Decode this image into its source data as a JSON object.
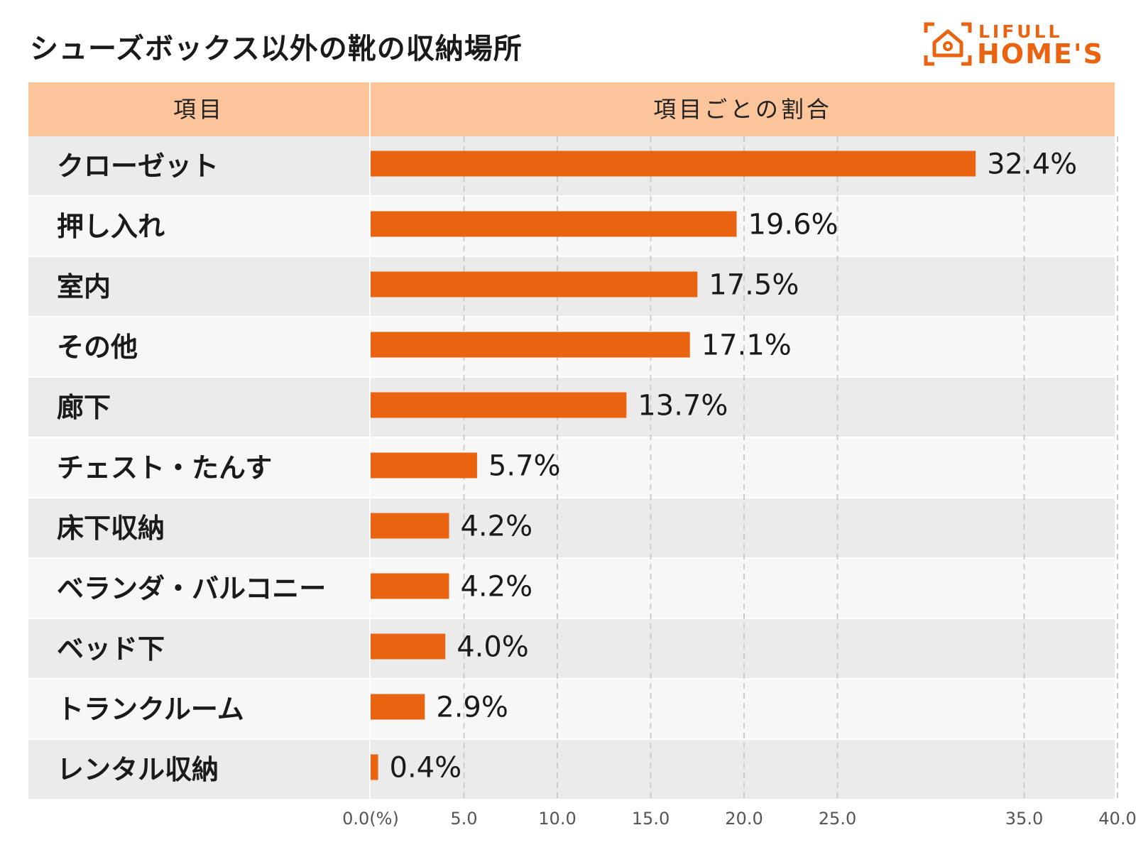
{
  "title": "シューズボックス以外の靴の収納場所",
  "logo": {
    "top": "LIFULL",
    "bottom": "HOME'S",
    "icon": "house-bracket-icon",
    "color": "#ea6310"
  },
  "table_header": {
    "item": "項目",
    "ratio": "項目ごとの割合"
  },
  "colors": {
    "bar": "#ea6310",
    "header": "#fbc49a",
    "row_odd": "#ebebeb",
    "row_even": "#f7f7f7",
    "grid": "#cccccc"
  },
  "chart_data": {
    "type": "bar",
    "orientation": "horizontal",
    "categories": [
      "クローゼット",
      "押し入れ",
      "室内",
      "その他",
      "廊下",
      "チェスト・たんす",
      "床下収納",
      "ベランダ・バルコニー",
      "ベッド下",
      "トランクルーム",
      "レンタル収納"
    ],
    "values": [
      32.4,
      19.6,
      17.5,
      17.1,
      13.7,
      5.7,
      4.2,
      4.2,
      4.0,
      2.9,
      0.4
    ],
    "value_labels": [
      "32.4%",
      "19.6%",
      "17.5%",
      "17.1%",
      "13.7%",
      "5.7%",
      "4.2%",
      "4.2%",
      "4.0%",
      "2.9%",
      "0.4%"
    ],
    "ticks": [
      0,
      5,
      10,
      15,
      20,
      25,
      35,
      40
    ],
    "tick_labels": [
      "0.0(%)",
      "5.0",
      "10.0",
      "15.0",
      "20.0",
      "25.0",
      "35.0",
      "40.0"
    ],
    "grid": true,
    "grid_style": "dashed"
  }
}
